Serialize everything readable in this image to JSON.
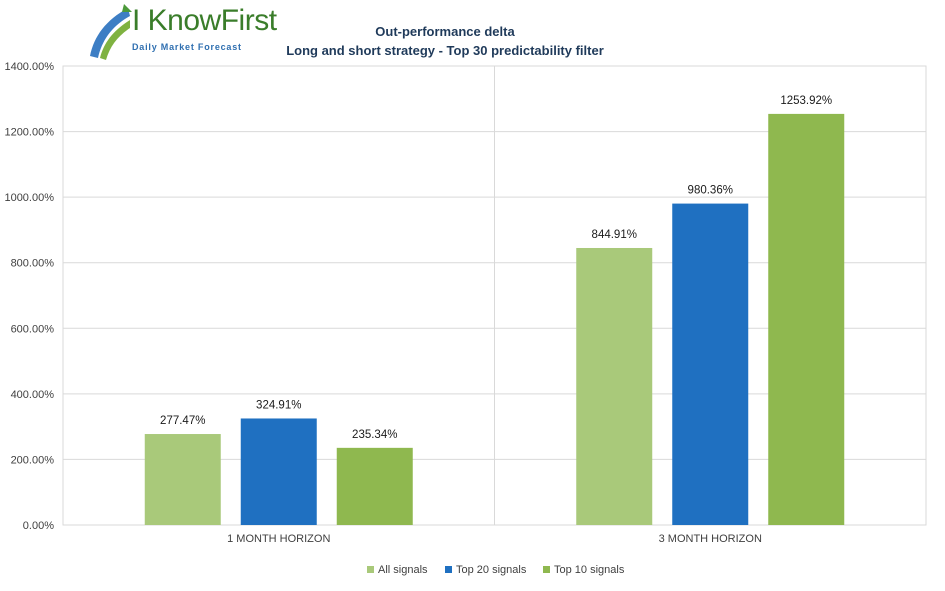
{
  "logo": {
    "main": "I KnowFirst",
    "sub": "Daily Market Forecast"
  },
  "chart_data": {
    "type": "bar",
    "title": "Out-performance delta",
    "subtitle": "Long and short strategy - Top 30 predictability filter",
    "categories": [
      "1 MONTH HORIZON",
      "3 MONTH HORIZON"
    ],
    "series": [
      {
        "name": "All signals",
        "color": "#a9c97a",
        "values": [
          277.47,
          844.91
        ],
        "labels": [
          "277.47%",
          "844.91%"
        ]
      },
      {
        "name": "Top 20 signals",
        "color": "#1f70c1",
        "values": [
          324.91,
          980.36
        ],
        "labels": [
          "324.91%",
          "980.36%"
        ]
      },
      {
        "name": "Top 10 signals",
        "color": "#8fb84f",
        "values": [
          235.34,
          1253.92
        ],
        "labels": [
          "235.34%",
          "1253.92%"
        ]
      }
    ],
    "ylim": [
      0,
      1400
    ],
    "yticks": [
      "0.00%",
      "200.00%",
      "400.00%",
      "600.00%",
      "800.00%",
      "1000.00%",
      "1200.00%",
      "1400.00%"
    ],
    "ytick_values": [
      0,
      200,
      400,
      600,
      800,
      1000,
      1200,
      1400
    ],
    "grid": true,
    "legend_position": "bottom"
  }
}
